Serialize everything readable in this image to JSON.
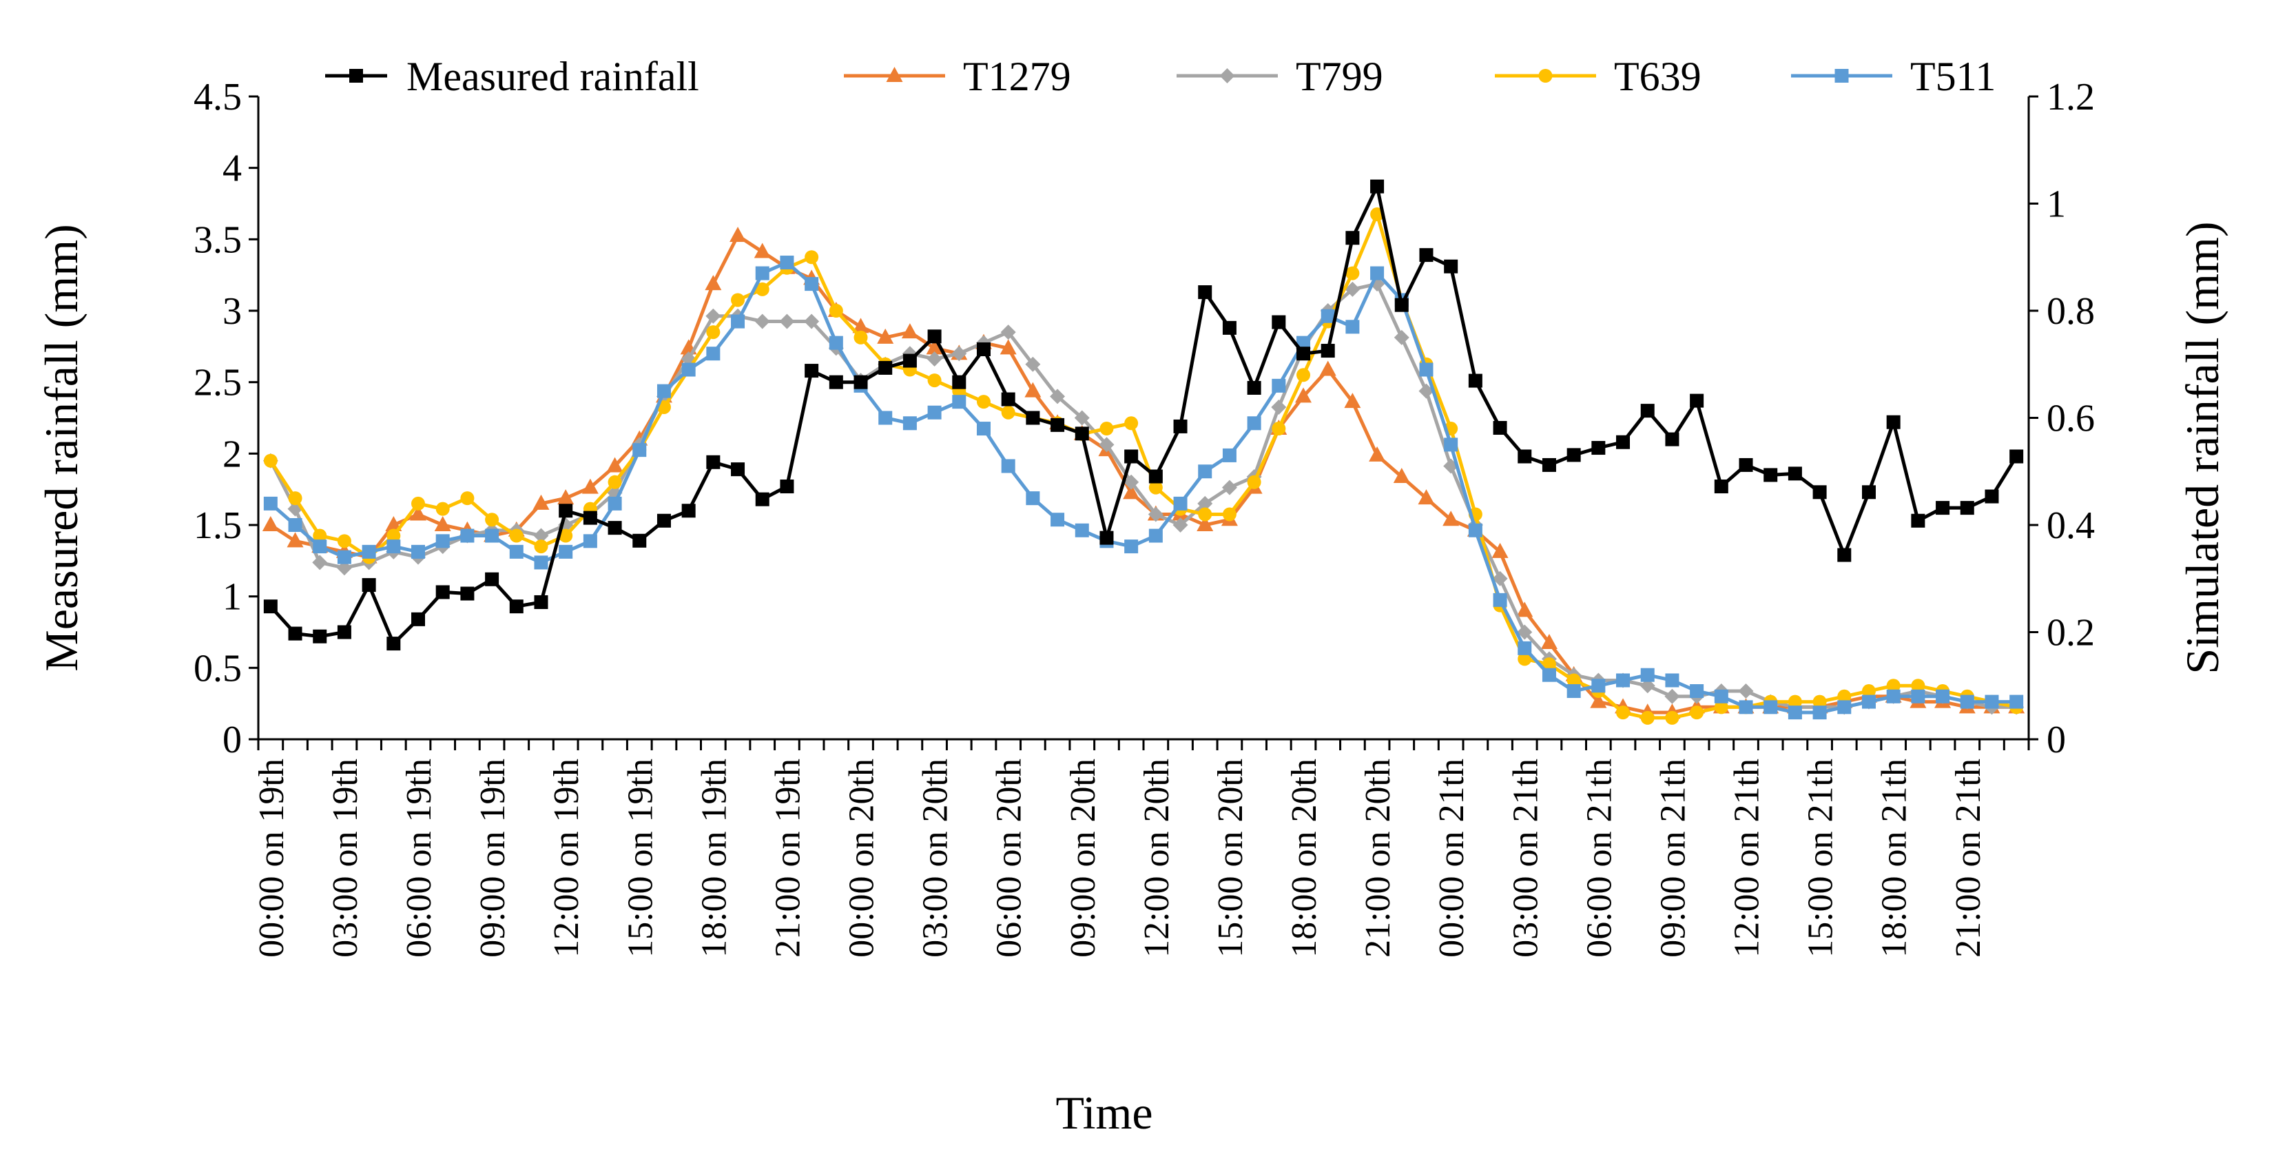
{
  "chart_data": {
    "type": "line",
    "xlabel": "Time",
    "ylabel_left": "Measured rainfall (mm)",
    "ylabel_right": "Simulated rainfall (mm)",
    "ylim_left": [
      0,
      4.5
    ],
    "ylim_right": [
      0,
      1.2
    ],
    "yticks_left": [
      "0",
      "0.5",
      "1",
      "1.5",
      "2",
      "2.5",
      "3",
      "3.5",
      "4",
      "4.5"
    ],
    "yticks_right": [
      "0",
      "0.2",
      "0.4",
      "0.6",
      "0.8",
      "1",
      "1.2"
    ],
    "x_tick_labels": [
      "00:00 on 19th",
      "03:00 on 19th",
      "06:00 on 19th",
      "09:00 on 19th",
      "12:00 on 19th",
      "15:00 on 19th",
      "18:00 on 19th",
      "21:00 on 19th",
      "00:00 on 20th",
      "03:00 on 20th",
      "06:00 on 20th",
      "09:00 on 20th",
      "12:00 on 20th",
      "15:00 on 20th",
      "18:00 on 20th",
      "21:00 on 20th",
      "00:00 on 21th",
      "03:00 on 21th",
      "06:00 on 21th",
      "09:00 on 21th",
      "12:00 on 21th",
      "15:00 on 21th",
      "18:00 on 21th",
      "21:00 on 21th"
    ],
    "hours": 72,
    "grid": false,
    "legend_position": "top",
    "series": [
      {
        "name": "Measured rainfall",
        "axis": "left",
        "color": "#000000",
        "marker": "square",
        "values": [
          0.93,
          0.74,
          0.72,
          0.75,
          1.08,
          0.67,
          0.84,
          1.03,
          1.02,
          1.12,
          0.93,
          0.96,
          1.6,
          1.55,
          1.48,
          1.39,
          1.53,
          1.6,
          1.94,
          1.89,
          1.68,
          1.77,
          2.58,
          2.5,
          2.5,
          2.6,
          2.65,
          2.82,
          2.5,
          2.73,
          2.38,
          2.25,
          2.2,
          2.14,
          1.41,
          1.98,
          1.84,
          2.19,
          3.13,
          2.88,
          2.46,
          2.92,
          2.7,
          2.72,
          3.51,
          3.87,
          3.04,
          3.39,
          3.31,
          2.51,
          2.18,
          1.98,
          1.92,
          1.99,
          2.04,
          2.08,
          2.3,
          2.1,
          2.37,
          1.77,
          1.92,
          1.85,
          1.86,
          1.73,
          1.29,
          1.73,
          2.22,
          1.53,
          1.62,
          1.62,
          1.7,
          1.98
        ]
      },
      {
        "name": "T1279",
        "axis": "right",
        "color": "#ED7D31",
        "marker": "triangle",
        "values": [
          0.4,
          0.37,
          0.36,
          0.35,
          0.34,
          0.4,
          0.42,
          0.4,
          0.39,
          0.38,
          0.39,
          0.44,
          0.45,
          0.47,
          0.51,
          0.56,
          0.64,
          0.73,
          0.85,
          0.94,
          0.91,
          0.88,
          0.86,
          0.8,
          0.77,
          0.75,
          0.76,
          0.73,
          0.72,
          0.74,
          0.73,
          0.65,
          0.59,
          0.57,
          0.54,
          0.46,
          0.42,
          0.42,
          0.4,
          0.41,
          0.47,
          0.58,
          0.64,
          0.69,
          0.63,
          0.53,
          0.49,
          0.45,
          0.41,
          0.39,
          0.35,
          0.24,
          0.18,
          0.12,
          0.07,
          0.06,
          0.05,
          0.05,
          0.06,
          0.06,
          0.06,
          0.06,
          0.06,
          0.06,
          0.07,
          0.08,
          0.08,
          0.07,
          0.07,
          0.06,
          0.06,
          0.06
        ]
      },
      {
        "name": "T799",
        "axis": "right",
        "color": "#A5A5A5",
        "marker": "diamond",
        "values": [
          0.52,
          0.43,
          0.33,
          0.32,
          0.33,
          0.35,
          0.34,
          0.36,
          0.38,
          0.39,
          0.39,
          0.38,
          0.4,
          0.42,
          0.46,
          0.55,
          0.64,
          0.71,
          0.79,
          0.79,
          0.78,
          0.78,
          0.78,
          0.73,
          0.67,
          0.7,
          0.72,
          0.71,
          0.72,
          0.74,
          0.76,
          0.7,
          0.64,
          0.6,
          0.55,
          0.48,
          0.42,
          0.4,
          0.44,
          0.47,
          0.49,
          0.62,
          0.73,
          0.8,
          0.84,
          0.85,
          0.75,
          0.65,
          0.51,
          0.4,
          0.3,
          0.2,
          0.15,
          0.12,
          0.11,
          0.11,
          0.1,
          0.08,
          0.08,
          0.09,
          0.09,
          0.07,
          0.06,
          0.06,
          0.06,
          0.07,
          0.08,
          0.09,
          0.08,
          0.07,
          0.06,
          0.06
        ]
      },
      {
        "name": "T639",
        "axis": "right",
        "color": "#FFC000",
        "marker": "circle",
        "values": [
          0.52,
          0.45,
          0.38,
          0.37,
          0.34,
          0.38,
          0.44,
          0.43,
          0.45,
          0.41,
          0.38,
          0.36,
          0.38,
          0.43,
          0.48,
          0.54,
          0.62,
          0.69,
          0.76,
          0.82,
          0.84,
          0.88,
          0.9,
          0.8,
          0.75,
          0.7,
          0.69,
          0.67,
          0.65,
          0.63,
          0.61,
          0.6,
          0.59,
          0.57,
          0.58,
          0.59,
          0.47,
          0.43,
          0.42,
          0.42,
          0.48,
          0.58,
          0.68,
          0.78,
          0.87,
          0.98,
          0.82,
          0.7,
          0.58,
          0.42,
          0.25,
          0.15,
          0.14,
          0.11,
          0.09,
          0.05,
          0.04,
          0.04,
          0.05,
          0.06,
          0.06,
          0.07,
          0.07,
          0.07,
          0.08,
          0.09,
          0.1,
          0.1,
          0.09,
          0.08,
          0.07,
          0.06
        ]
      },
      {
        "name": "T511",
        "axis": "right",
        "color": "#5B9BD5",
        "marker": "square",
        "values": [
          0.44,
          0.4,
          0.36,
          0.34,
          0.35,
          0.36,
          0.35,
          0.37,
          0.38,
          0.38,
          0.35,
          0.33,
          0.35,
          0.37,
          0.44,
          0.54,
          0.65,
          0.69,
          0.72,
          0.78,
          0.87,
          0.89,
          0.85,
          0.74,
          0.66,
          0.6,
          0.59,
          0.61,
          0.63,
          0.58,
          0.51,
          0.45,
          0.41,
          0.39,
          0.37,
          0.36,
          0.38,
          0.44,
          0.5,
          0.53,
          0.59,
          0.66,
          0.74,
          0.79,
          0.77,
          0.87,
          0.82,
          0.69,
          0.55,
          0.39,
          0.26,
          0.17,
          0.12,
          0.09,
          0.1,
          0.11,
          0.12,
          0.11,
          0.09,
          0.08,
          0.06,
          0.06,
          0.05,
          0.05,
          0.06,
          0.07,
          0.08,
          0.08,
          0.08,
          0.07,
          0.07,
          0.07
        ]
      }
    ]
  }
}
